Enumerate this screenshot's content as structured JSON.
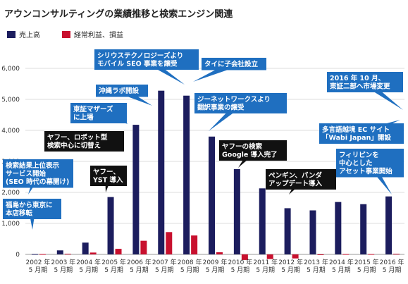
{
  "chart_data": {
    "type": "bar",
    "title": "アウンコンサルティングの業績推移と検索エンジン関連",
    "ylim": [
      -300,
      6000
    ],
    "yticks": [
      "0",
      "1,000",
      "2,000",
      "3,000",
      "4,000",
      "5,000",
      "6,000"
    ],
    "ytick_values": [
      0,
      1000,
      2000,
      3000,
      4000,
      5000,
      6000
    ],
    "categories": [
      [
        "2002 年",
        "5 月期"
      ],
      [
        "2003 年",
        "5 月期"
      ],
      [
        "2004 年",
        "5 月期"
      ],
      [
        "2005 年",
        "5 月期"
      ],
      [
        "2006 年",
        "5 月期"
      ],
      [
        "2007 年",
        "5 月期"
      ],
      [
        "2008 年",
        "5 月期"
      ],
      [
        "2009 年",
        "5 月期"
      ],
      [
        "2010 年",
        "5 月期"
      ],
      [
        "2011 年",
        "5 月期"
      ],
      [
        "2012 年",
        "5 月期"
      ],
      [
        "2013 年",
        "5 月期"
      ],
      [
        "2014 年",
        "5 月期"
      ],
      [
        "2015 年",
        "5 月期"
      ],
      [
        "2016 年",
        "5 月期"
      ]
    ],
    "series": [
      {
        "name": "売上高",
        "color": "#1c1d5e",
        "values": [
          10,
          130,
          380,
          1850,
          4180,
          5280,
          5120,
          3800,
          2750,
          2130,
          1490,
          1420,
          1690,
          1620,
          1870
        ]
      },
      {
        "name": "経常利益、損益",
        "color": "#c8102e",
        "values": [
          10,
          20,
          60,
          180,
          440,
          720,
          610,
          70,
          -180,
          -150,
          -130,
          -20,
          10,
          10,
          20
        ]
      }
    ],
    "legend_position": "top-left",
    "grid": true,
    "annotations": [
      {
        "lines": [
          "福島から東京に",
          "本店移転"
        ],
        "style": "blue",
        "x": 0,
        "y": 1200
      },
      {
        "lines": [
          "検索結果上位表示",
          "サービス開始",
          "(SEO 時代の幕開け)"
        ],
        "style": "blue",
        "x": 0,
        "y": 2200
      },
      {
        "lines": [
          "ヤフー、",
          "YST 導入"
        ],
        "style": "black",
        "x": 3,
        "y": 2050
      },
      {
        "lines": [
          "ヤフー、ロボット型",
          "検索中心に切替え"
        ],
        "style": "black",
        "x": 3,
        "y": 3400
      },
      {
        "lines": [
          "東証マザーズ",
          "に上場"
        ],
        "style": "blue",
        "x": 4,
        "y": 4300
      },
      {
        "lines": [
          "沖縄ラボ開設"
        ],
        "style": "blue",
        "x": 5,
        "y": 5300
      },
      {
        "lines": [
          "シリウステクノロジーズより",
          "モバイル SEO 事業を譲受"
        ],
        "style": "blue",
        "x": 6,
        "y": 5300
      },
      {
        "lines": [
          "タイに子会社設立"
        ],
        "style": "blue",
        "x": 6,
        "y": 5150
      },
      {
        "lines": [
          "ジーネットワークスより",
          "翻訳事業の譲受"
        ],
        "style": "blue",
        "x": 7,
        "y": 3900
      },
      {
        "lines": [
          "ヤフーの検索",
          "Google 導入完了"
        ],
        "style": "black",
        "x": 8,
        "y": 2850
      },
      {
        "lines": [
          "ペンギン、パンダ",
          "アップデート導入"
        ],
        "style": "black",
        "x": 10,
        "y": 1600
      },
      {
        "lines": [
          "2016 年 10 月、",
          "東証二部へ市場変更"
        ],
        "style": "blue",
        "x": 14,
        "y": 4850
      },
      {
        "lines": [
          "多言語越境 EC サイト",
          "「Wabi Japan」開設"
        ],
        "style": "blue",
        "x": 14,
        "y": 3500
      },
      {
        "lines": [
          "フィリピンを",
          "中心とした",
          "アセット事業開始"
        ],
        "style": "blue",
        "x": 14,
        "y": 2000
      }
    ]
  }
}
